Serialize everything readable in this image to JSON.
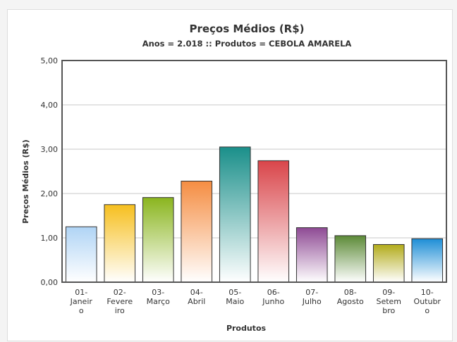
{
  "chart_data": {
    "type": "bar",
    "title": "Preços Médios (R$)",
    "subtitle": "Anos = 2.018 :: Produtos = CEBOLA AMARELA",
    "xlabel": "Produtos",
    "ylabel": "Preços Médios (R$)",
    "ylim": [
      0,
      5
    ],
    "yticks": [
      "0,00",
      "1,00",
      "2,00",
      "3,00",
      "4,00",
      "5,00"
    ],
    "grid": true,
    "legend": "none",
    "categories": [
      {
        "label": "01-Janeiro",
        "lines": [
          "01-",
          "Janeir",
          "o"
        ]
      },
      {
        "label": "02-Fevereiro",
        "lines": [
          "02-",
          "Fevere",
          "iro"
        ]
      },
      {
        "label": "03-Março",
        "lines": [
          "03-",
          "Março"
        ]
      },
      {
        "label": "04-Abril",
        "lines": [
          "04-",
          "Abril"
        ]
      },
      {
        "label": "05-Maio",
        "lines": [
          "05-",
          "Maio"
        ]
      },
      {
        "label": "06-Junho",
        "lines": [
          "06-",
          "Junho"
        ]
      },
      {
        "label": "07-Julho",
        "lines": [
          "07-",
          "Julho"
        ]
      },
      {
        "label": "08-Agosto",
        "lines": [
          "08-",
          "Agosto"
        ]
      },
      {
        "label": "09-Setembro",
        "lines": [
          "09-",
          "Setem",
          "bro"
        ]
      },
      {
        "label": "10-Outubro",
        "lines": [
          "10-",
          "Outubr",
          "o"
        ]
      }
    ],
    "values": [
      1.25,
      1.75,
      1.91,
      2.28,
      3.05,
      2.74,
      1.23,
      1.05,
      0.85,
      0.98
    ],
    "colors": [
      "#b0d4f5",
      "#f6bf1e",
      "#8ab51e",
      "#f58d42",
      "#1a8f8a",
      "#d9454a",
      "#8e4a94",
      "#5c8a37",
      "#b2ab1a",
      "#1e8ed6"
    ]
  }
}
